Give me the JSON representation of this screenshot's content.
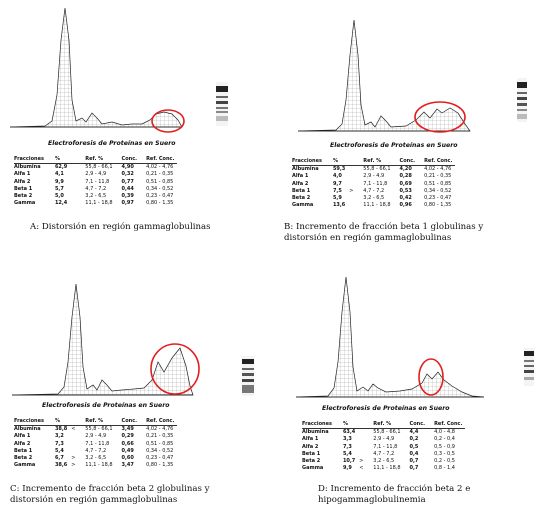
{
  "panels": [
    {
      "title": "Electroforesis de Proteínas en Suero",
      "caption_lines": [
        "A: Distorsión en región gammaglobulinas"
      ],
      "headers": [
        "Fracciones",
        "%",
        "Ref. %",
        "Conc.",
        "Ref. Conc."
      ],
      "rows": [
        {
          "name": "Albumina",
          "pct": "62,9",
          "arrow": "",
          "ref": "55,8 - 66,1",
          "conc": "4,90",
          "refc": "4,02 - 4,76"
        },
        {
          "name": "Alfa 1",
          "pct": "4,1",
          "arrow": "",
          "ref": "2,9 - 4,9",
          "conc": "0,32",
          "refc": "0,21 - 0,35"
        },
        {
          "name": "Alfa 2",
          "pct": "9,9",
          "arrow": "",
          "ref": "7,1 - 11,8",
          "conc": "0,77",
          "refc": "0,51 - 0,85"
        },
        {
          "name": "Beta 1",
          "pct": "5,7",
          "arrow": "",
          "ref": "4,7 - 7,2",
          "conc": "0,44",
          "refc": "0,34 - 0,52"
        },
        {
          "name": "Beta 2",
          "pct": "5,0",
          "arrow": "",
          "ref": "3,2 - 6,5",
          "conc": "0,39",
          "refc": "0,23 - 0,47"
        },
        {
          "name": "Gamma",
          "pct": "12,4",
          "arrow": "",
          "ref": "11,1 - 18,8",
          "conc": "0,97",
          "refc": "0,80 - 1,35"
        }
      ]
    },
    {
      "title": "Electroforesis de Proteínas en Suero",
      "caption_lines": [
        "B: Incremento de fracción beta 1 globulinas y",
        "distorsión en región gammaglobulinas"
      ],
      "headers": [
        "Fracciones",
        "%",
        "Ref. %",
        "Conc.",
        "Ref. Conc."
      ],
      "rows": [
        {
          "name": "Albumina",
          "pct": "59,3",
          "arrow": "",
          "ref": "55,8 - 66,1",
          "conc": "4,20",
          "refc": "4,02 - 4,76"
        },
        {
          "name": "Alfa 1",
          "pct": "4,0",
          "arrow": "",
          "ref": "2,9 - 4,9",
          "conc": "0,28",
          "refc": "0,21 - 0,35"
        },
        {
          "name": "Alfa 2",
          "pct": "9,7",
          "arrow": "",
          "ref": "7,1 - 11,8",
          "conc": "0,69",
          "refc": "0,51 - 0,85"
        },
        {
          "name": "Beta 1",
          "pct": "7,5",
          "arrow": ">",
          "ref": "4,7 - 7,2",
          "conc": "0,53",
          "refc": "0,34 - 0,52"
        },
        {
          "name": "Beta 2",
          "pct": "5,9",
          "arrow": "",
          "ref": "3,2 - 6,5",
          "conc": "0,42",
          "refc": "0,23 - 0,47"
        },
        {
          "name": "Gamma",
          "pct": "13,6",
          "arrow": "",
          "ref": "11,1 - 18,8",
          "conc": "0,96",
          "refc": "0,80 - 1,35"
        }
      ]
    },
    {
      "title": "Electroforesis de Proteínas en Suero",
      "caption_lines": [
        "C: Incremento de fracción beta 2 globulinas y",
        "distorsión en región gammaglobulinas"
      ],
      "headers": [
        "Fracciones",
        "%",
        "Ref. %",
        "Conc.",
        "Ref. Conc."
      ],
      "rows": [
        {
          "name": "Albumina",
          "pct": "38,8",
          "arrow": "<",
          "ref": "55,8 - 66,1",
          "conc": "3,49",
          "refc": "4,02 - 4,76"
        },
        {
          "name": "Alfa 1",
          "pct": "3,2",
          "arrow": "",
          "ref": "2,9 - 4,9",
          "conc": "0,29",
          "refc": "0,21 - 0,35"
        },
        {
          "name": "Alfa 2",
          "pct": "7,3",
          "arrow": "",
          "ref": "7,1 - 11,8",
          "conc": "0,66",
          "refc": "0,51 - 0,85"
        },
        {
          "name": "Beta 1",
          "pct": "5,4",
          "arrow": "",
          "ref": "4,7 - 7,2",
          "conc": "0,49",
          "refc": "0,34 - 0,52"
        },
        {
          "name": "Beta 2",
          "pct": "6,7",
          "arrow": ">",
          "ref": "3,2 - 6,5",
          "conc": "0,60",
          "refc": "0,23 - 0,47"
        },
        {
          "name": "Gamma",
          "pct": "38,6",
          "arrow": ">",
          "ref": "11,1 - 18,8",
          "conc": "3,47",
          "refc": "0,80 - 1,35"
        }
      ]
    },
    {
      "title": "Electroforesis de Proteínas en Suero",
      "caption_lines": [
        "D: Incremento de fracción beta 2 e",
        "hipogammaglobulinemia"
      ],
      "headers": [
        "Fracciones",
        "%",
        "Ref. %",
        "Conc.",
        "Ref. Conc."
      ],
      "rows": [
        {
          "name": "Albumina",
          "pct": "63,4",
          "arrow": "",
          "ref": "55,8 - 66,1",
          "conc": "4,4",
          "refc": "4,0 - 4,8"
        },
        {
          "name": "Alfa 1",
          "pct": "3,3",
          "arrow": "",
          "ref": "2,9 - 4,9",
          "conc": "0,2",
          "refc": "0,2 - 0,4"
        },
        {
          "name": "Alfa 2",
          "pct": "7,3",
          "arrow": "",
          "ref": "7,1 - 11,8",
          "conc": "0,5",
          "refc": "0,5 - 0,9"
        },
        {
          "name": "Beta 1",
          "pct": "5,4",
          "arrow": "",
          "ref": "4,7 - 7,2",
          "conc": "0,4",
          "refc": "0,3 - 0,5"
        },
        {
          "name": "Beta 2",
          "pct": "10,7",
          "arrow": ">",
          "ref": "3,2 - 6,5",
          "conc": "0,7",
          "refc": "0,2 - 0,5"
        },
        {
          "name": "Gamma",
          "pct": "9,9",
          "arrow": "<",
          "ref": "11,1 - 18,8",
          "conc": "0,7",
          "refc": "0,8 - 1,4"
        }
      ]
    }
  ]
}
